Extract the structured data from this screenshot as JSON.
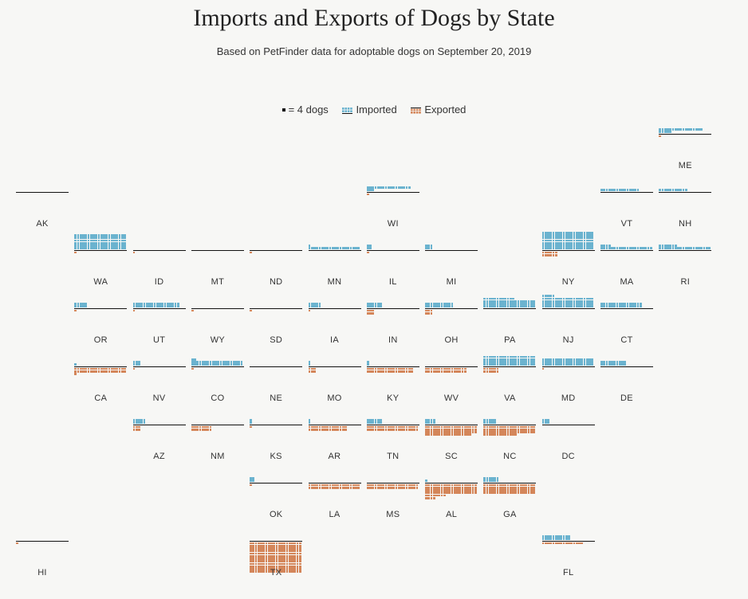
{
  "title": "Imports and Exports of Dogs by State",
  "subtitle": "Based on PetFinder data for adoptable dogs on September 20, 2019",
  "legend": {
    "unit_label": "= 4 dogs",
    "imported_label": "Imported",
    "exported_label": "Exported"
  },
  "colors": {
    "imported": "#6bb3cf",
    "exported": "#d4865a",
    "baseline": "#111111"
  },
  "chart_data": {
    "type": "tile-grid",
    "units_per_square": 4,
    "states": [
      {
        "abbr": "ME",
        "row": 0,
        "col": 11,
        "imported": [
          5,
          17,
          0,
          0
        ],
        "exported": [
          1,
          0
        ]
      },
      {
        "abbr": "AK",
        "row": 1,
        "col": 0,
        "imported": [],
        "exported": []
      },
      {
        "abbr": "WI",
        "row": 1,
        "col": 6,
        "imported": [
          3,
          17,
          0,
          0
        ],
        "exported": [
          1,
          0
        ]
      },
      {
        "abbr": "VT",
        "row": 1,
        "col": 10,
        "imported": [
          15
        ],
        "exported": []
      },
      {
        "abbr": "NH",
        "row": 1,
        "col": 11,
        "imported": [
          11
        ],
        "exported": []
      },
      {
        "abbr": "WA",
        "row": 2,
        "col": 1,
        "imported": [
          20,
          20,
          20,
          20,
          20,
          20
        ],
        "exported": [
          1,
          0
        ]
      },
      {
        "abbr": "ID",
        "row": 2,
        "col": 2,
        "imported": [],
        "exported": [
          1
        ]
      },
      {
        "abbr": "MT",
        "row": 2,
        "col": 3,
        "imported": [],
        "exported": []
      },
      {
        "abbr": "ND",
        "row": 2,
        "col": 4,
        "imported": [],
        "exported": [
          1
        ]
      },
      {
        "abbr": "MN",
        "row": 2,
        "col": 5,
        "imported": [
          20,
          1
        ],
        "exported": []
      },
      {
        "abbr": "IL",
        "row": 2,
        "col": 6,
        "imported": [
          2,
          2
        ],
        "exported": [
          1
        ]
      },
      {
        "abbr": "MI",
        "row": 2,
        "col": 7,
        "imported": [
          3,
          3
        ],
        "exported": []
      },
      {
        "abbr": "NY",
        "row": 2,
        "col": 9,
        "imported": [
          20,
          20,
          20,
          20,
          20,
          20,
          20
        ],
        "exported": [
          6,
          6
        ]
      },
      {
        "abbr": "MA",
        "row": 2,
        "col": 10,
        "imported": [
          20,
          4
        ],
        "exported": []
      },
      {
        "abbr": "RI",
        "row": 2,
        "col": 11,
        "imported": [
          20,
          7
        ],
        "exported": []
      },
      {
        "abbr": "OR",
        "row": 3,
        "col": 1,
        "imported": [
          5,
          5
        ],
        "exported": [
          1
        ]
      },
      {
        "abbr": "UT",
        "row": 3,
        "col": 2,
        "imported": [
          18,
          18
        ],
        "exported": [
          1
        ]
      },
      {
        "abbr": "WY",
        "row": 3,
        "col": 3,
        "imported": [],
        "exported": [
          1
        ]
      },
      {
        "abbr": "SD",
        "row": 3,
        "col": 4,
        "imported": [],
        "exported": [
          1
        ]
      },
      {
        "abbr": "IA",
        "row": 3,
        "col": 5,
        "imported": [
          5,
          5
        ],
        "exported": [
          1
        ]
      },
      {
        "abbr": "IN",
        "row": 3,
        "col": 6,
        "imported": [
          6,
          6
        ],
        "exported": [
          3,
          3
        ]
      },
      {
        "abbr": "OH",
        "row": 3,
        "col": 7,
        "imported": [
          11,
          11
        ],
        "exported": [
          3,
          3
        ]
      },
      {
        "abbr": "PA",
        "row": 3,
        "col": 8,
        "imported": [
          20,
          20,
          20,
          12
        ],
        "exported": []
      },
      {
        "abbr": "NJ",
        "row": 3,
        "col": 9,
        "imported": [
          20,
          20,
          20,
          20,
          5
        ],
        "exported": []
      },
      {
        "abbr": "CT",
        "row": 3,
        "col": 10,
        "imported": [
          16,
          16
        ],
        "exported": []
      },
      {
        "abbr": "CA",
        "row": 4,
        "col": 1,
        "imported": [
          1
        ],
        "exported": [
          20,
          20,
          1
        ]
      },
      {
        "abbr": "NV",
        "row": 4,
        "col": 2,
        "imported": [
          3,
          3
        ],
        "exported": [
          1
        ]
      },
      {
        "abbr": "CO",
        "row": 4,
        "col": 3,
        "imported": [
          20,
          20,
          2
        ],
        "exported": [
          1
        ]
      },
      {
        "abbr": "NE",
        "row": 4,
        "col": 4,
        "imported": [],
        "exported": []
      },
      {
        "abbr": "MO",
        "row": 4,
        "col": 5,
        "imported": [
          1,
          1
        ],
        "exported": [
          3,
          3
        ]
      },
      {
        "abbr": "KY",
        "row": 4,
        "col": 6,
        "imported": [
          1,
          1
        ],
        "exported": [
          18,
          18
        ]
      },
      {
        "abbr": "WV",
        "row": 4,
        "col": 7,
        "imported": [],
        "exported": [
          16,
          16
        ]
      },
      {
        "abbr": "VA",
        "row": 4,
        "col": 8,
        "imported": [
          20,
          20,
          20,
          20
        ],
        "exported": [
          6,
          6
        ]
      },
      {
        "abbr": "MD",
        "row": 4,
        "col": 9,
        "imported": [
          20,
          20,
          20
        ],
        "exported": [
          1
        ]
      },
      {
        "abbr": "DE",
        "row": 4,
        "col": 10,
        "imported": [
          10,
          10
        ],
        "exported": []
      },
      {
        "abbr": "AZ",
        "row": 5,
        "col": 2,
        "imported": [
          5,
          5
        ],
        "exported": [
          3,
          3
        ]
      },
      {
        "abbr": "NM",
        "row": 5,
        "col": 3,
        "imported": [],
        "exported": [
          8,
          8
        ]
      },
      {
        "abbr": "KS",
        "row": 5,
        "col": 4,
        "imported": [
          1,
          1
        ],
        "exported": [
          1
        ]
      },
      {
        "abbr": "AR",
        "row": 5,
        "col": 5,
        "imported": [
          1,
          1
        ],
        "exported": [
          15,
          15
        ]
      },
      {
        "abbr": "TN",
        "row": 5,
        "col": 6,
        "imported": [
          6,
          6
        ],
        "exported": [
          20,
          20
        ]
      },
      {
        "abbr": "SC",
        "row": 5,
        "col": 7,
        "imported": [
          4,
          4
        ],
        "exported": [
          20,
          20,
          20,
          18
        ]
      },
      {
        "abbr": "NC",
        "row": 5,
        "col": 8,
        "imported": [
          5,
          5
        ],
        "exported": [
          20,
          20,
          20,
          13
        ]
      },
      {
        "abbr": "DC",
        "row": 5,
        "col": 9,
        "imported": [
          3,
          3
        ],
        "exported": []
      },
      {
        "abbr": "OK",
        "row": 6,
        "col": 4,
        "imported": [
          2,
          2
        ],
        "exported": [
          1
        ]
      },
      {
        "abbr": "LA",
        "row": 6,
        "col": 5,
        "imported": [],
        "exported": [
          20,
          20
        ]
      },
      {
        "abbr": "MS",
        "row": 6,
        "col": 6,
        "imported": [],
        "exported": [
          20,
          20
        ]
      },
      {
        "abbr": "AL",
        "row": 6,
        "col": 7,
        "imported": [
          1
        ],
        "exported": [
          20,
          20,
          20,
          20,
          8,
          4
        ]
      },
      {
        "abbr": "GA",
        "row": 6,
        "col": 8,
        "imported": [
          6,
          6
        ],
        "exported": [
          20,
          20,
          20,
          20
        ]
      },
      {
        "abbr": "HI",
        "row": 7,
        "col": 0,
        "imported": [],
        "exported": [
          1
        ]
      },
      {
        "abbr": "TX",
        "row": 7,
        "col": 4,
        "imported": [],
        "exported": [
          20,
          20,
          20,
          20,
          20,
          20,
          20,
          20,
          20,
          20,
          20,
          20
        ]
      },
      {
        "abbr": "FL",
        "row": 7,
        "col": 9,
        "imported": [
          11,
          11
        ],
        "exported": [
          16
        ]
      }
    ]
  }
}
